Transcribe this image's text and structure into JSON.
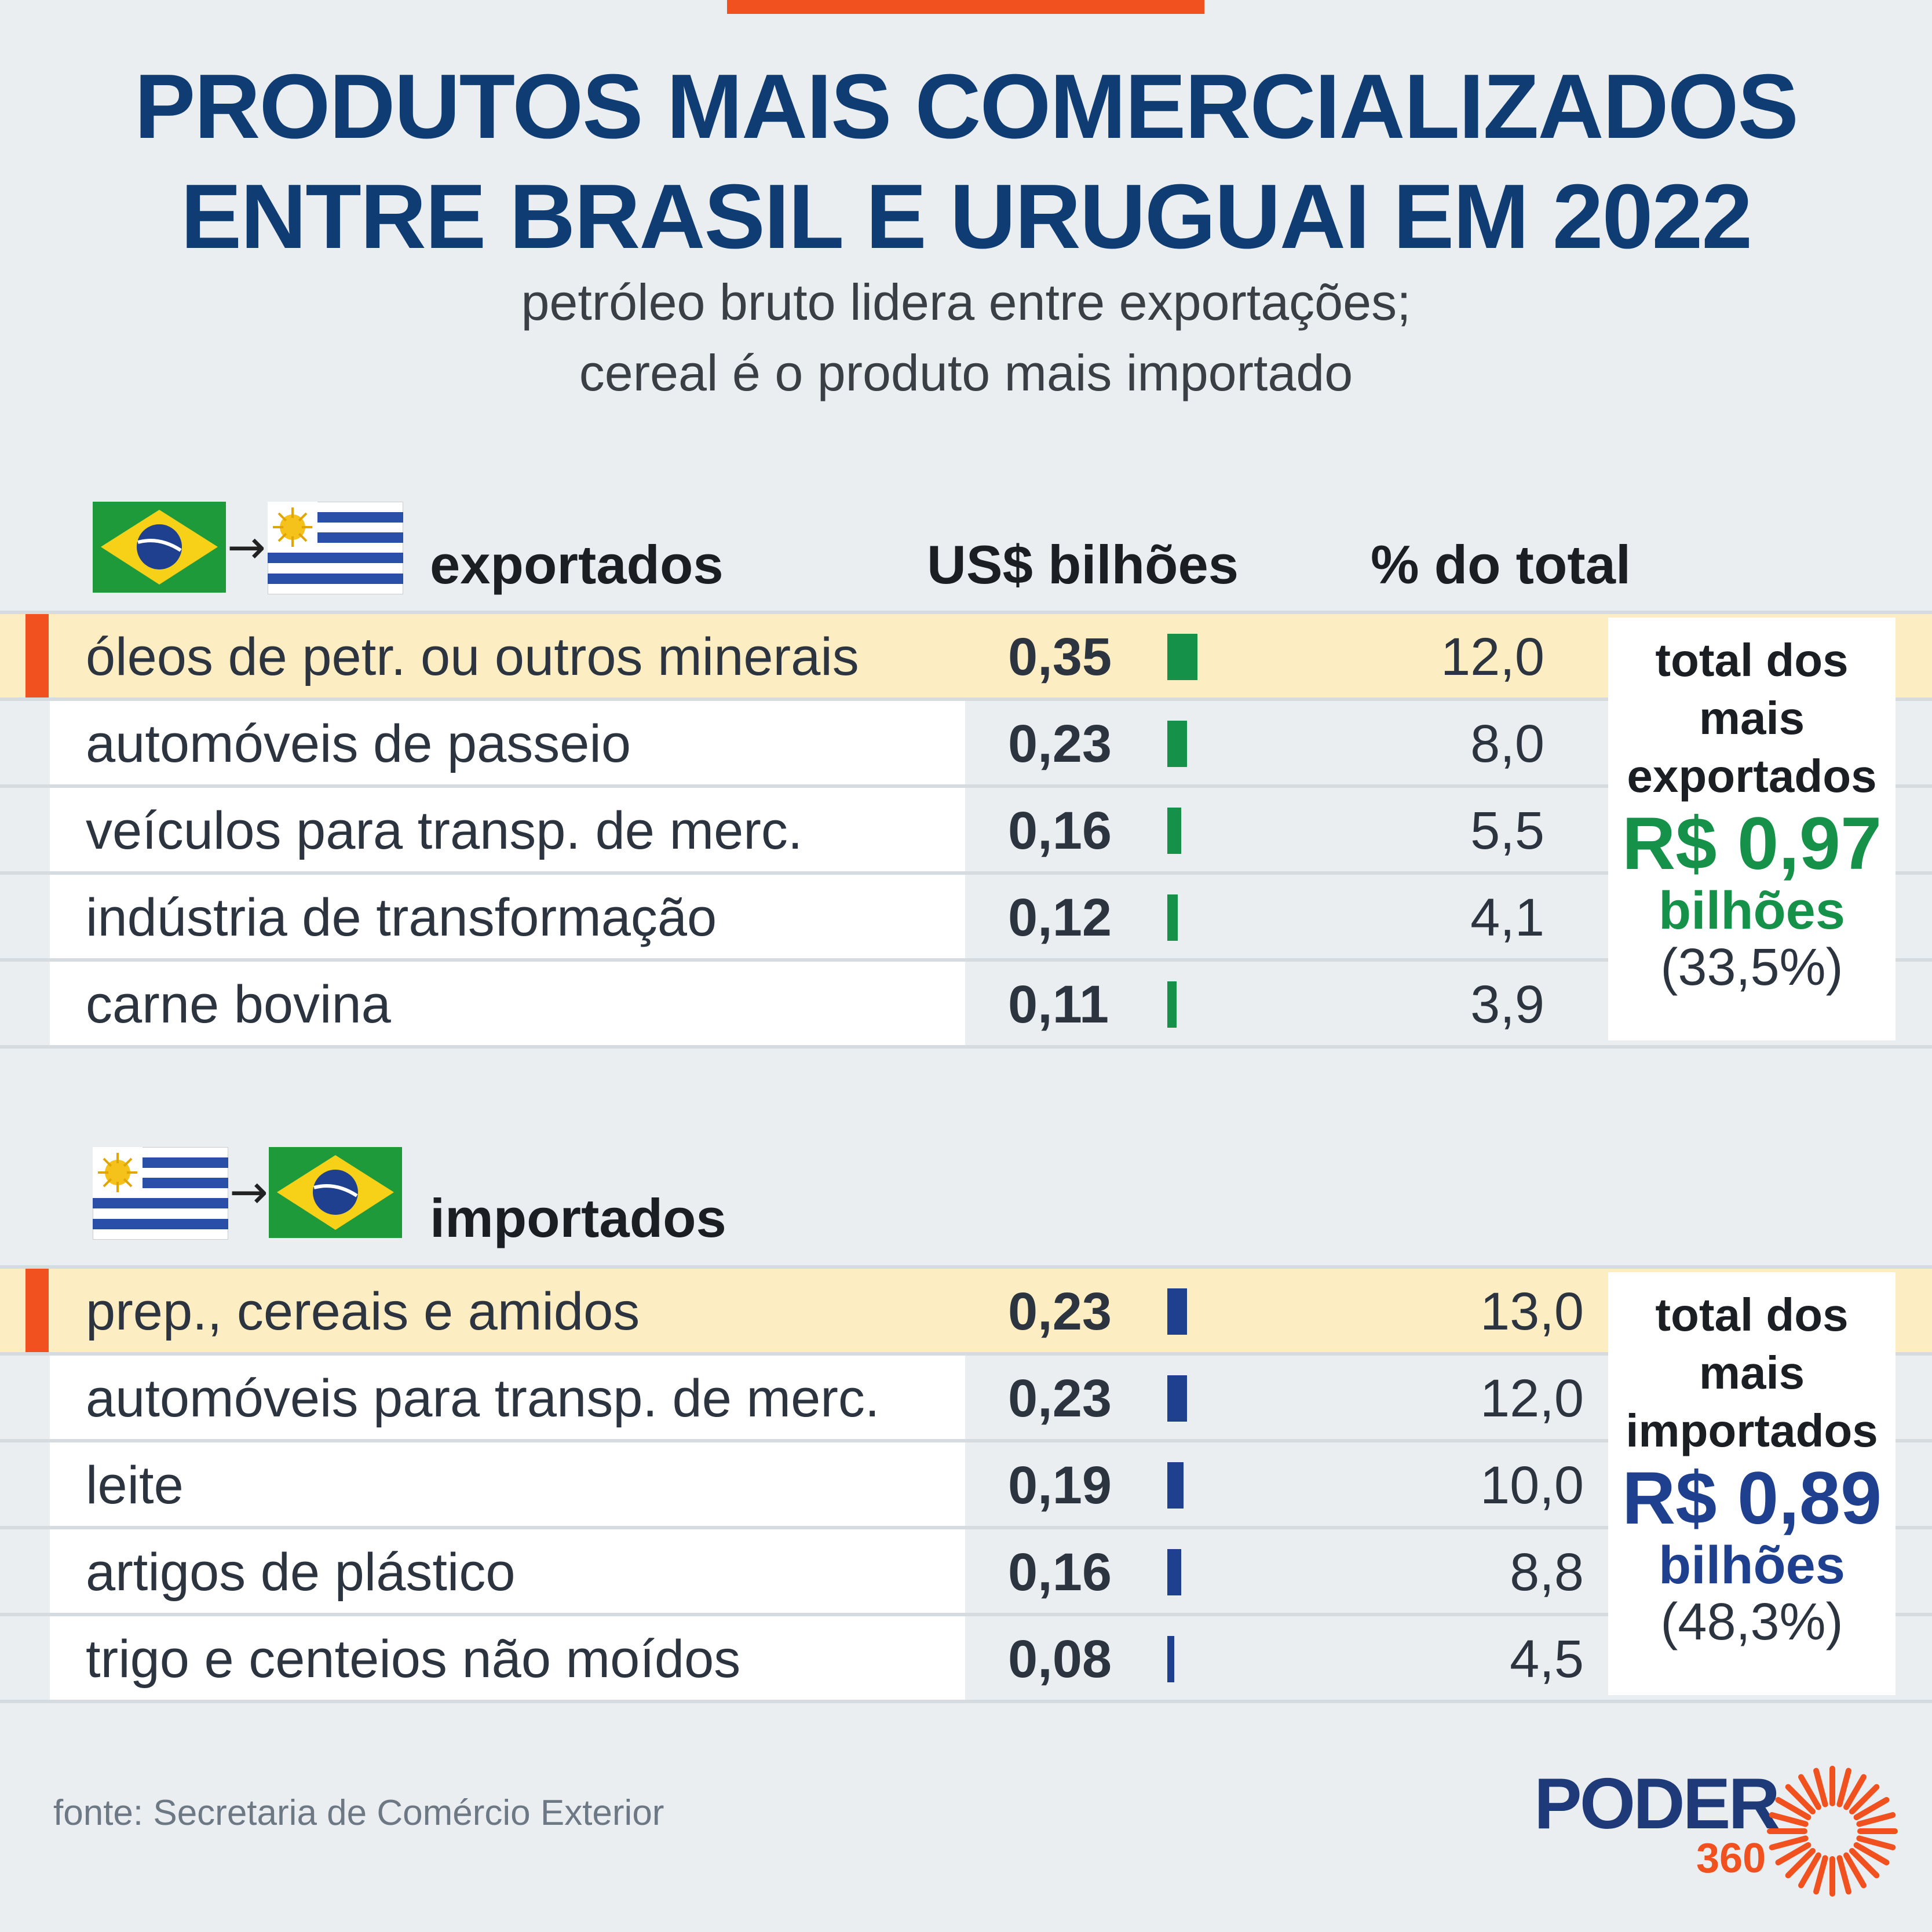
{
  "header": {
    "title_line1": "PRODUTOS MAIS COMERCIALIZADOS",
    "title_line2": "ENTRE BRASIL E URUGUAI EM 2022",
    "subtitle_line1": "petróleo bruto lidera entre exportações;",
    "subtitle_line2": "cereal é o produto mais importado"
  },
  "columns": {
    "value_header": "US$ bilhões",
    "pct_header": "% do total"
  },
  "export": {
    "heading": "exportados",
    "summary": {
      "label_line1": "total dos",
      "label_line2": "mais",
      "label_line3": "exportados",
      "amount": "R$ 0,97",
      "unit": "bilhões",
      "share": "(33,5%)",
      "color": "#16914a"
    },
    "rows": [
      {
        "label": "óleos de petr. ou outros minerais",
        "value": "0,35",
        "pct": "12,0"
      },
      {
        "label": "automóveis de passeio",
        "value": "0,23",
        "pct": "8,0"
      },
      {
        "label": "veículos para transp. de merc.",
        "value": "0,16",
        "pct": "5,5"
      },
      {
        "label": "indústria de transformação",
        "value": "0,12",
        "pct": "4,1"
      },
      {
        "label": "carne bovina",
        "value": "0,11",
        "pct": "3,9"
      }
    ]
  },
  "import": {
    "heading": "importados",
    "summary": {
      "label_line1": "total dos",
      "label_line2": "mais",
      "label_line3": "importados",
      "amount": "R$ 0,89",
      "unit": "bilhões",
      "share": "(48,3%)",
      "color": "#1f3f8f"
    },
    "rows": [
      {
        "label": "prep., cereais e amidos",
        "value": "0,23",
        "pct": "13,0"
      },
      {
        "label": "automóveis para transp. de merc.",
        "value": "0,23",
        "pct": "12,0"
      },
      {
        "label": "leite",
        "value": "0,19",
        "pct": "10,0"
      },
      {
        "label": "artigos de plástico",
        "value": "0,16",
        "pct": "8,8"
      },
      {
        "label": "trigo e centeios não moídos",
        "value": "0,08",
        "pct": "4,5"
      }
    ]
  },
  "footer": {
    "source": "fonte: Secretaria de Comércio Exterior",
    "logo_text": "PODER",
    "logo_sub": "360"
  },
  "chart_data": [
    {
      "type": "bar",
      "xlabel": "",
      "ylabel": "US$ bilhões",
      "categories": [
        "óleos de petr. ou outros minerais",
        "automóveis de passeio",
        "veículos para transp. de merc.",
        "indústria de transformação",
        "carne bovina"
      ],
      "values": [
        0.35,
        0.23,
        0.16,
        0.12,
        0.11
      ],
      "pct_of_total": [
        12.0,
        8.0,
        5.5,
        4.1,
        3.9
      ],
      "orientation": "horizontal",
      "color": "#16914a"
    },
    {
      "type": "bar",
      "xlabel": "",
      "ylabel": "US$ bilhões",
      "categories": [
        "prep., cereais e amidos",
        "automóveis para transp. de merc.",
        "leite",
        "artigos de plástico",
        "trigo e centeios não moídos"
      ],
      "values": [
        0.23,
        0.23,
        0.19,
        0.16,
        0.08
      ],
      "pct_of_total": [
        13.0,
        12.0,
        10.0,
        8.8,
        4.5
      ],
      "orientation": "horizontal",
      "color": "#1f3f8f"
    }
  ]
}
